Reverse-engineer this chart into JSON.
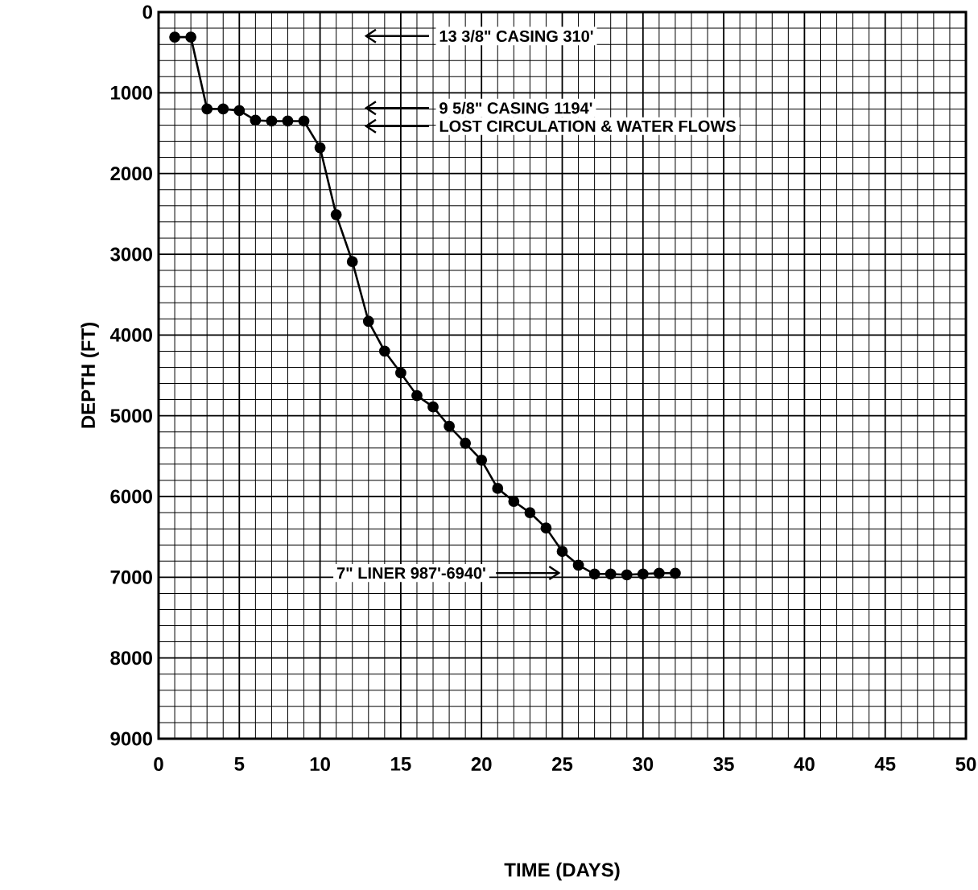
{
  "chart_data": {
    "type": "line",
    "xlabel": "TIME (DAYS)",
    "ylabel": "DEPTH (FT)",
    "x": [
      1,
      2,
      3,
      4,
      5,
      6,
      7,
      8,
      9,
      10,
      11,
      12,
      13,
      14,
      15,
      16,
      17,
      18,
      19,
      20,
      21,
      22,
      23,
      24,
      25,
      26,
      27,
      28,
      29,
      30,
      31,
      32
    ],
    "values": [
      310,
      310,
      1200,
      1200,
      1220,
      1340,
      1350,
      1350,
      1350,
      1680,
      2510,
      3090,
      3830,
      4200,
      4470,
      4750,
      4890,
      5130,
      5340,
      5550,
      5900,
      6060,
      6200,
      6390,
      6680,
      6850,
      6960,
      6960,
      6970,
      6960,
      6950,
      6950
    ],
    "color": "#000000",
    "marker": "circle",
    "line_style": "solid",
    "grid": true,
    "xlim": [
      0,
      50
    ],
    "xticks": [
      0,
      5,
      10,
      15,
      20,
      25,
      30,
      35,
      40,
      45,
      50
    ],
    "ylim": [
      9000,
      0
    ],
    "yticks": [
      0,
      1000,
      2000,
      3000,
      4000,
      5000,
      6000,
      7000,
      8000,
      9000
    ],
    "annotations": [
      "13 3/8\" CASING 310'",
      "9 5/8\" CASING 1194'",
      "LOST CIRCULATION & WATER FLOWS",
      "7\" LINER 987'-6940'"
    ]
  }
}
